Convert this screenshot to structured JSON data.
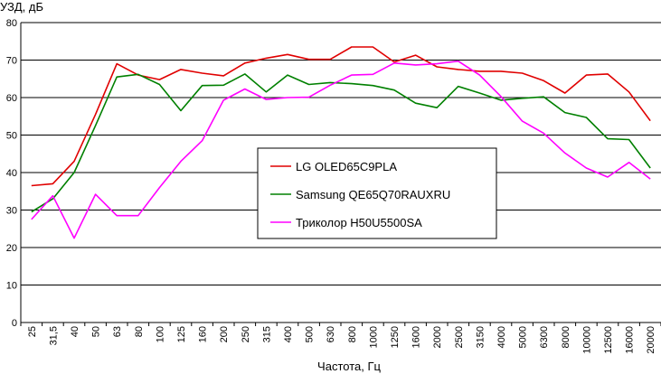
{
  "chart_data": {
    "type": "line",
    "ylabel": "УЗД, дБ",
    "xlabel": "Частота, Гц",
    "ylim": [
      0,
      80
    ],
    "yticks": [
      0,
      10,
      20,
      30,
      40,
      50,
      60,
      70,
      80
    ],
    "grid": "horizontal",
    "legend_position": "center",
    "categories": [
      "25",
      "31,5",
      "40",
      "50",
      "63",
      "80",
      "100",
      "125",
      "160",
      "200",
      "250",
      "315",
      "400",
      "500",
      "630",
      "800",
      "1000",
      "1250",
      "1600",
      "2000",
      "2500",
      "3150",
      "4000",
      "5000",
      "6300",
      "8000",
      "10000",
      "12500",
      "16000",
      "20000"
    ],
    "series": [
      {
        "name": "LG OLED65C9PLA",
        "color": "#e00000",
        "values": [
          36.5,
          37,
          43,
          55.5,
          69,
          66,
          64.8,
          67.5,
          66.5,
          65.8,
          69.2,
          70.5,
          71.5,
          70.2,
          70.2,
          73.5,
          73.5,
          69.5,
          71.3,
          68.2,
          67.5,
          67,
          67,
          66.5,
          64.5,
          61.2,
          66,
          66.3,
          61.5,
          53.8
        ]
      },
      {
        "name": "Samsung QE65Q70RAUXRU",
        "color": "#008000",
        "values": [
          29.5,
          33,
          40,
          52.5,
          65.5,
          66.2,
          63.5,
          56.5,
          63.2,
          63.3,
          66.3,
          61.5,
          66,
          63.5,
          64,
          63.7,
          63.2,
          62,
          58.5,
          57.3,
          63,
          61.2,
          59.3,
          59.8,
          60.2,
          56,
          54.7,
          49,
          48.8,
          41.2
        ]
      },
      {
        "name": "Триколор H50U5500SA",
        "color": "#ff00ff",
        "values": [
          27.5,
          33.8,
          22.5,
          34.2,
          28.5,
          28.5,
          36,
          43,
          48.5,
          59.3,
          62.3,
          59.5,
          60,
          60.1,
          63.3,
          66,
          66.2,
          69.2,
          68.7,
          69,
          69.7,
          66,
          60.3,
          53.7,
          50.5,
          45.2,
          41.2,
          38.8,
          42.7,
          38.3
        ]
      }
    ]
  }
}
